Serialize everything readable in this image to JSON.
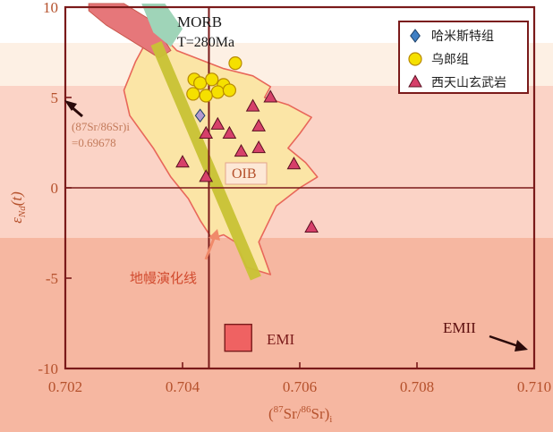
{
  "chart_data": {
    "type": "scatter",
    "title": "",
    "xlabel": "(87Sr/86Sr)i",
    "xlabel_parts": {
      "open": "(",
      "sup1": "87",
      "mid1": "Sr/",
      "sup2": "86",
      "mid2": "Sr)",
      "sub": "i"
    },
    "ylabel": "εNd(t)",
    "ylabel_parts": {
      "main": "ε",
      "sub": "Nd",
      "rest": "(t)"
    },
    "xlim": [
      0.702,
      0.71
    ],
    "ylim": [
      -10,
      10
    ],
    "x_ticks": [
      "0.702",
      "0.704",
      "0.706",
      "0.708",
      "0.710"
    ],
    "x_tick_values": [
      0.702,
      0.704,
      0.706,
      0.708,
      0.71
    ],
    "y_ticks": [
      "10",
      "5",
      "0",
      "-5",
      "-10"
    ],
    "y_tick_values": [
      10,
      5,
      0,
      -5,
      -10
    ],
    "reference_lines": {
      "x": 0.70445,
      "y": 0
    },
    "annotations": {
      "morb": "MORB",
      "age": "T=280Ma",
      "oib": "OIB",
      "mantle_line": "地幔演化线",
      "emi": "EMI",
      "emii": "EMII",
      "sr_note_line1": "(87Sr/86Sr)i",
      "sr_note_line2": "=0.69678"
    },
    "legend": {
      "placement": "top-right",
      "items": [
        {
          "label": "哈米斯特组",
          "marker": "diamond",
          "color": "#3f7fc4"
        },
        {
          "label": "乌郎组",
          "marker": "circle",
          "color": "#f5e000"
        },
        {
          "label": "西天山玄武岩",
          "marker": "triangle",
          "color": "#d6406a"
        }
      ]
    },
    "series": [
      {
        "name": "哈米斯特组",
        "marker": "diamond",
        "points": [
          [
            0.7043,
            4.0
          ]
        ]
      },
      {
        "name": "乌郎组",
        "marker": "circle",
        "points": [
          [
            0.7042,
            6.0
          ],
          [
            0.7043,
            5.8
          ],
          [
            0.7049,
            6.9
          ],
          [
            0.7045,
            6.0
          ],
          [
            0.7047,
            5.7
          ],
          [
            0.7046,
            5.3
          ],
          [
            0.7044,
            5.1
          ],
          [
            0.7048,
            5.4
          ],
          [
            0.70418,
            5.2
          ]
        ]
      },
      {
        "name": "西天山玄武岩",
        "marker": "triangle",
        "points": [
          [
            0.7055,
            5.0
          ],
          [
            0.7052,
            4.5
          ],
          [
            0.7046,
            3.5
          ],
          [
            0.7048,
            3.0
          ],
          [
            0.7053,
            3.4
          ],
          [
            0.7044,
            3.0
          ],
          [
            0.705,
            2.0
          ],
          [
            0.7053,
            2.2
          ],
          [
            0.704,
            1.4
          ],
          [
            0.7059,
            1.3
          ],
          [
            0.7044,
            0.6
          ],
          [
            0.7062,
            -2.2
          ]
        ]
      }
    ],
    "emi_box": [
      0.70495,
      -8.3
    ],
    "colors": {
      "frame": "#7a1a1a",
      "field_fill": "#fbe5a6",
      "field_stroke": "#e8675a",
      "mantle_line": "#c9c335",
      "morb_fill": "#e6777a",
      "morb_inner": "#9fd4b8",
      "emi_fill": "#ef6262",
      "tick_text": "#b5512c"
    }
  }
}
